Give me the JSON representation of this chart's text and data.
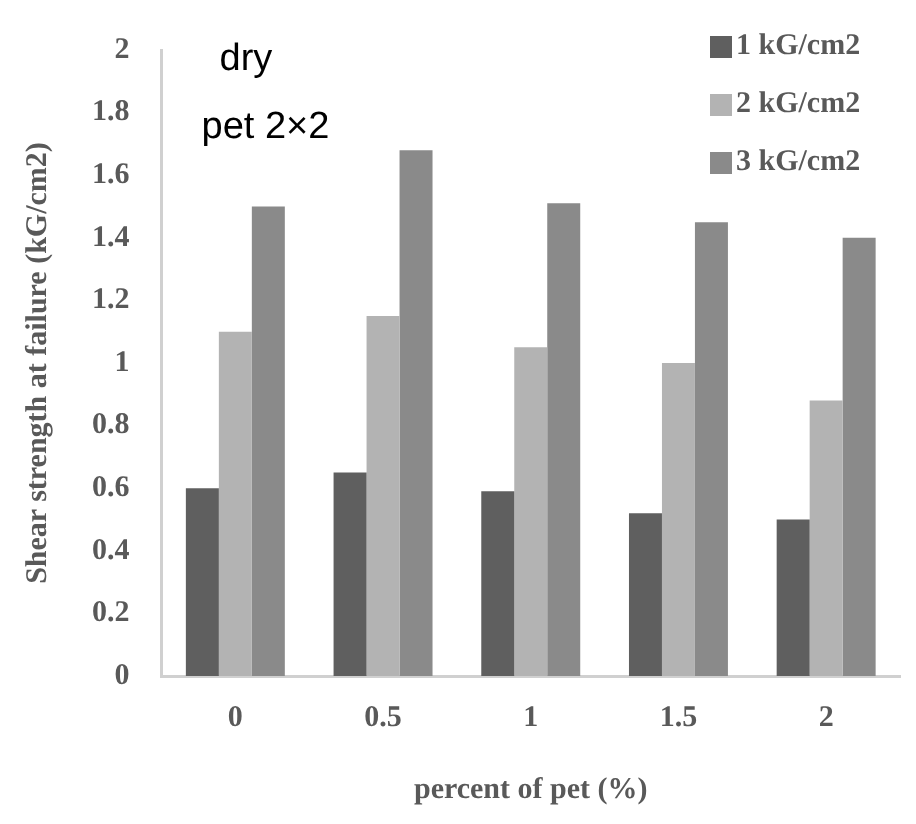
{
  "chart_data": {
    "type": "bar",
    "xlabel": "percent of pet (%)",
    "ylabel": "Shear strength at failure (kG/cm2)",
    "categories": [
      "0",
      "0.5",
      "1",
      "1.5",
      "2"
    ],
    "series": [
      {
        "name": "1 kG/cm2",
        "color": "#5f5f5f",
        "values": [
          0.6,
          0.65,
          0.59,
          0.52,
          0.5
        ]
      },
      {
        "name": "2 kG/cm2",
        "color": "#b3b3b3",
        "values": [
          1.1,
          1.15,
          1.05,
          1.0,
          0.88
        ]
      },
      {
        "name": "3 kG/cm2",
        "color": "#8a8a8a",
        "values": [
          1.5,
          1.68,
          1.51,
          1.45,
          1.4
        ]
      }
    ],
    "ylim": [
      0,
      2
    ],
    "yticks": [
      0,
      0.2,
      0.4,
      0.6,
      0.8,
      1,
      1.2,
      1.4,
      1.6,
      1.8,
      2
    ],
    "annotations": [
      "dry",
      "pet 2×2"
    ],
    "grid": false,
    "legend": "top right"
  }
}
